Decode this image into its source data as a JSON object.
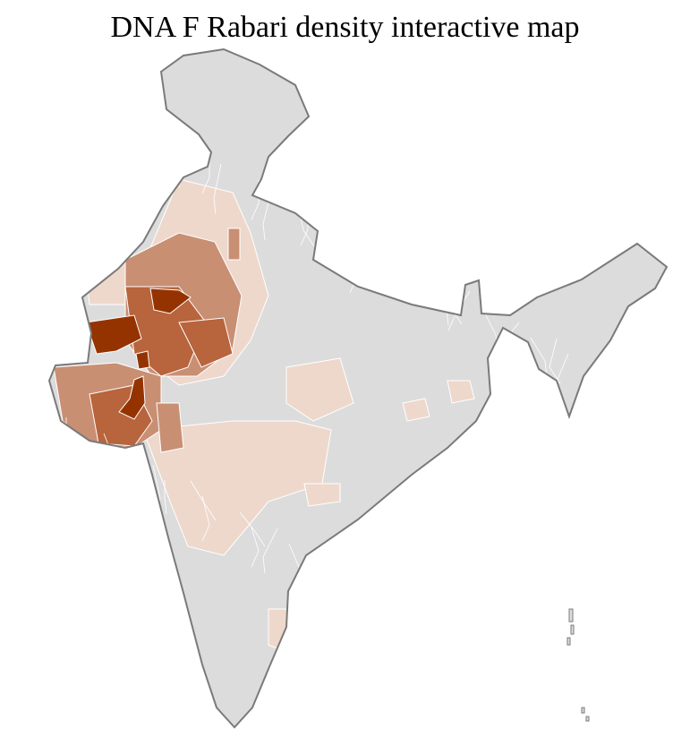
{
  "title": "DNA F Rabari density interactive map",
  "map": {
    "region": "India districts",
    "colors": {
      "no_data": "#dcdcdc",
      "low": "#eed8cc",
      "medium": "#c98f73",
      "high": "#b8643c",
      "highest": "#953300",
      "state_border": "#7a7a7a",
      "district_border": "#ffffff"
    }
  }
}
